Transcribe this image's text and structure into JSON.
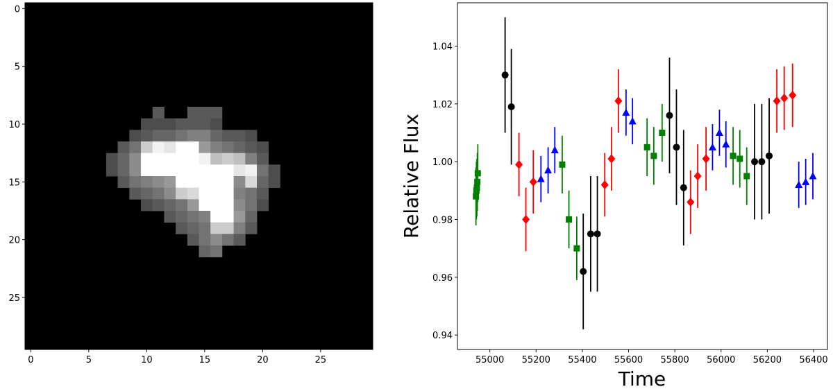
{
  "chart_data": [
    {
      "type": "heatmap",
      "title": "",
      "xlabel": "",
      "ylabel": "",
      "xlim": [
        -0.5,
        29.5
      ],
      "ylim": [
        29.5,
        -0.5
      ],
      "xticks": [
        0,
        5,
        10,
        15,
        20,
        25
      ],
      "yticks": [
        0,
        5,
        10,
        15,
        20,
        25
      ],
      "colormap": "gray",
      "background": "#000000",
      "grid": false,
      "pixels": [
        {
          "row": 9,
          "cols": [
            11
          ],
          "values": [
            0.35
          ]
        },
        {
          "row": 9,
          "cols": [
            14,
            15,
            16
          ],
          "values": [
            0.35,
            0.35,
            0.35
          ]
        },
        {
          "row": 10,
          "cols": [
            10,
            11,
            12,
            13,
            14,
            15,
            16
          ],
          "values": [
            0.3,
            0.3,
            0.3,
            0.35,
            0.35,
            0.35,
            0.3
          ]
        },
        {
          "row": 11,
          "cols": [
            9,
            10,
            11,
            12,
            13,
            14,
            15,
            16,
            17,
            18,
            19
          ],
          "values": [
            0.3,
            0.35,
            0.4,
            0.4,
            0.45,
            0.5,
            0.5,
            0.4,
            0.35,
            0.35,
            0.3
          ]
        },
        {
          "row": 12,
          "cols": [
            8,
            9,
            10,
            11,
            12,
            13,
            14,
            15,
            16,
            17,
            18,
            19,
            20
          ],
          "values": [
            0.35,
            0.45,
            0.8,
            0.95,
            0.9,
            1.0,
            1.0,
            0.6,
            0.5,
            0.45,
            0.4,
            0.35,
            0.3
          ]
        },
        {
          "row": 13,
          "cols": [
            7,
            8,
            9,
            10,
            11,
            12,
            13,
            14,
            15,
            16,
            17,
            18,
            19,
            20
          ],
          "values": [
            0.3,
            0.4,
            0.55,
            1.0,
            1.0,
            1.0,
            1.0,
            1.0,
            0.95,
            0.75,
            0.8,
            0.75,
            0.5,
            0.35
          ]
        },
        {
          "row": 14,
          "cols": [
            7,
            8,
            9,
            10,
            11,
            12,
            13,
            14,
            15,
            16,
            17,
            18,
            19,
            20,
            21
          ],
          "values": [
            0.3,
            0.4,
            0.55,
            1.0,
            1.0,
            1.0,
            1.0,
            1.0,
            1.0,
            1.0,
            1.0,
            0.9,
            0.95,
            0.45,
            0.3
          ]
        },
        {
          "row": 15,
          "cols": [
            8,
            9,
            10,
            11,
            12,
            13,
            14,
            15,
            16,
            17,
            18,
            19,
            20,
            21
          ],
          "values": [
            0.35,
            0.45,
            0.5,
            0.55,
            0.6,
            1.0,
            1.0,
            1.0,
            1.0,
            1.0,
            0.55,
            0.85,
            0.4,
            0.3
          ]
        },
        {
          "row": 16,
          "cols": [
            9,
            10,
            11,
            12,
            13,
            14,
            15,
            16,
            17,
            18,
            19,
            20
          ],
          "values": [
            0.35,
            0.4,
            0.45,
            0.55,
            0.8,
            0.85,
            1.0,
            1.0,
            1.0,
            0.5,
            0.45,
            0.35
          ]
        },
        {
          "row": 17,
          "cols": [
            10,
            11,
            12,
            13,
            14,
            15,
            16,
            17,
            18,
            19,
            20
          ],
          "values": [
            0.3,
            0.35,
            0.4,
            0.45,
            0.6,
            1.0,
            1.0,
            1.0,
            0.55,
            0.45,
            0.3
          ]
        },
        {
          "row": 18,
          "cols": [
            12,
            13,
            14,
            15,
            16,
            17,
            18,
            19
          ],
          "values": [
            0.35,
            0.4,
            0.45,
            0.5,
            1.0,
            1.0,
            0.6,
            0.4
          ]
        },
        {
          "row": 19,
          "cols": [
            13,
            14,
            15,
            16,
            17,
            18,
            19
          ],
          "values": [
            0.35,
            0.4,
            0.45,
            0.8,
            0.8,
            0.5,
            0.35
          ]
        },
        {
          "row": 20,
          "cols": [
            14,
            15,
            16,
            17,
            18
          ],
          "values": [
            0.35,
            0.45,
            0.55,
            0.45,
            0.35
          ]
        },
        {
          "row": 21,
          "cols": [
            15,
            16
          ],
          "values": [
            0.4,
            0.45
          ]
        }
      ]
    },
    {
      "type": "scatter",
      "title": "",
      "xlabel": "Time",
      "ylabel": "Relative Flux",
      "xlim": [
        54860,
        56460
      ],
      "ylim": [
        0.935,
        1.055
      ],
      "xticks": [
        55000,
        55200,
        55400,
        55600,
        55800,
        56000,
        56200,
        56400
      ],
      "yticks": [
        0.94,
        0.96,
        0.98,
        1.0,
        1.02,
        1.04
      ],
      "ytick_labels": [
        "0.94",
        "0.96",
        "0.98",
        "1.00",
        "1.02",
        "1.04"
      ],
      "grid": false,
      "legend": "none",
      "series": [
        {
          "color": "#008000",
          "marker": "square",
          "points": [
            {
              "x": 54940,
              "y": 0.988,
              "err": 0.01
            },
            {
              "x": 54942,
              "y": 0.99,
              "err": 0.01
            },
            {
              "x": 54944,
              "y": 0.991,
              "err": 0.01
            },
            {
              "x": 54946,
              "y": 0.993,
              "err": 0.01
            },
            {
              "x": 54948,
              "y": 0.996,
              "err": 0.01
            },
            {
              "x": 55313,
              "y": 0.999,
              "err": 0.01
            },
            {
              "x": 55342,
              "y": 0.98,
              "err": 0.01
            },
            {
              "x": 55376,
              "y": 0.97,
              "err": 0.011
            },
            {
              "x": 55680,
              "y": 1.005,
              "err": 0.01
            },
            {
              "x": 55709,
              "y": 1.002,
              "err": 0.01
            },
            {
              "x": 55745,
              "y": 1.01,
              "err": 0.01
            },
            {
              "x": 56052,
              "y": 1.002,
              "err": 0.01
            },
            {
              "x": 56081,
              "y": 1.001,
              "err": 0.01
            },
            {
              "x": 56111,
              "y": 0.995,
              "err": 0.01
            }
          ]
        },
        {
          "color": "#000000",
          "marker": "circle",
          "points": [
            {
              "x": 55066,
              "y": 1.03,
              "err": 0.02
            },
            {
              "x": 55093,
              "y": 1.019,
              "err": 0.02
            },
            {
              "x": 55404,
              "y": 0.962,
              "err": 0.02
            },
            {
              "x": 55436,
              "y": 0.975,
              "err": 0.02
            },
            {
              "x": 55465,
              "y": 0.975,
              "err": 0.02
            },
            {
              "x": 55777,
              "y": 1.016,
              "err": 0.02
            },
            {
              "x": 55807,
              "y": 1.005,
              "err": 0.02
            },
            {
              "x": 55838,
              "y": 0.991,
              "err": 0.02
            },
            {
              "x": 56145,
              "y": 1.0,
              "err": 0.02
            },
            {
              "x": 56176,
              "y": 1.0,
              "err": 0.02
            },
            {
              "x": 56208,
              "y": 1.002,
              "err": 0.02
            }
          ]
        },
        {
          "color": "#ff0000",
          "marker": "diamond",
          "points": [
            {
              "x": 55126,
              "y": 0.999,
              "err": 0.011
            },
            {
              "x": 55156,
              "y": 0.98,
              "err": 0.011
            },
            {
              "x": 55188,
              "y": 0.993,
              "err": 0.011
            },
            {
              "x": 55497,
              "y": 0.992,
              "err": 0.011
            },
            {
              "x": 55526,
              "y": 1.001,
              "err": 0.011
            },
            {
              "x": 55556,
              "y": 1.021,
              "err": 0.011
            },
            {
              "x": 55868,
              "y": 0.986,
              "err": 0.011
            },
            {
              "x": 55899,
              "y": 0.995,
              "err": 0.011
            },
            {
              "x": 55935,
              "y": 1.001,
              "err": 0.011
            },
            {
              "x": 56241,
              "y": 1.021,
              "err": 0.011
            },
            {
              "x": 56273,
              "y": 1.022,
              "err": 0.011
            },
            {
              "x": 56309,
              "y": 1.023,
              "err": 0.011
            }
          ]
        },
        {
          "color": "#0000ff",
          "marker": "triangle",
          "points": [
            {
              "x": 55221,
              "y": 0.994,
              "err": 0.008
            },
            {
              "x": 55252,
              "y": 0.997,
              "err": 0.008
            },
            {
              "x": 55281,
              "y": 1.004,
              "err": 0.008
            },
            {
              "x": 55589,
              "y": 1.017,
              "err": 0.008
            },
            {
              "x": 55617,
              "y": 1.014,
              "err": 0.008
            },
            {
              "x": 55963,
              "y": 1.005,
              "err": 0.008
            },
            {
              "x": 55993,
              "y": 1.01,
              "err": 0.008
            },
            {
              "x": 56021,
              "y": 1.006,
              "err": 0.008
            },
            {
              "x": 56336,
              "y": 0.992,
              "err": 0.008
            },
            {
              "x": 56366,
              "y": 0.993,
              "err": 0.008
            },
            {
              "x": 56397,
              "y": 0.995,
              "err": 0.008
            }
          ]
        }
      ]
    }
  ]
}
